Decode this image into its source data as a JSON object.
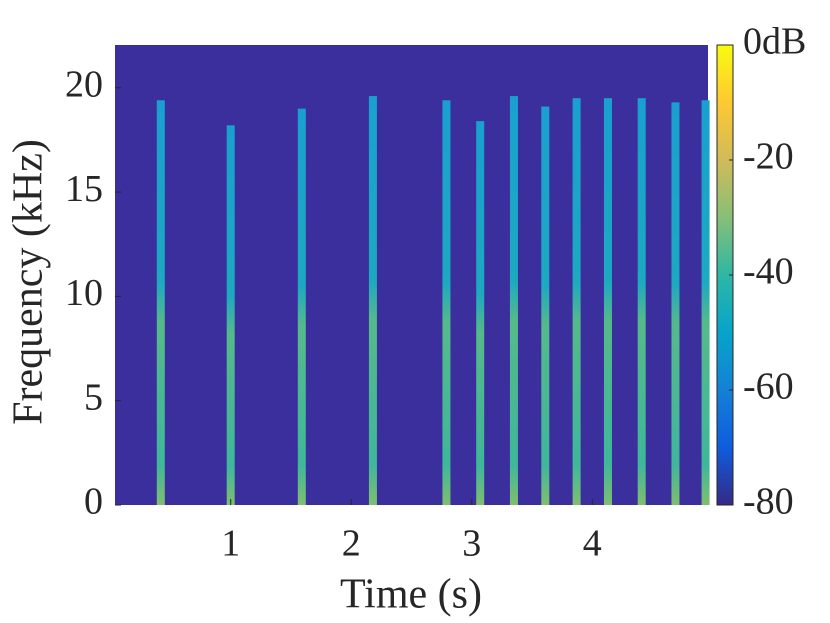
{
  "chart_data": {
    "type": "spectrogram",
    "xlabel": "Time (s)",
    "ylabel": "Frequency (kHz)",
    "x": [
      0.42,
      1.0,
      1.59,
      2.18,
      2.79,
      3.07,
      3.35,
      3.61,
      3.87,
      4.13,
      4.41,
      4.69,
      4.94
    ],
    "values": [
      19.4,
      18.2,
      19.0,
      19.6,
      19.4,
      18.4,
      19.6,
      19.1,
      19.5,
      19.5,
      19.5,
      19.3,
      19.4
    ],
    "xlim": [
      0.04,
      4.96
    ],
    "xticks": [
      1,
      2,
      3,
      4
    ],
    "ylim": [
      0,
      22.05
    ],
    "yticks": [
      0,
      5,
      10,
      15,
      20
    ],
    "clim": [
      -80,
      0
    ],
    "cticks": [
      {
        "value": 0,
        "label": "0dB"
      },
      -20,
      -40,
      -60,
      -80
    ],
    "colormap": [
      "#352a87",
      "#0f5cdd",
      "#1481d6",
      "#06a4ca",
      "#2eb7a4",
      "#87bf77",
      "#d1bb59",
      "#fec832",
      "#f9fb0e"
    ],
    "background": "#3b2f9e"
  }
}
